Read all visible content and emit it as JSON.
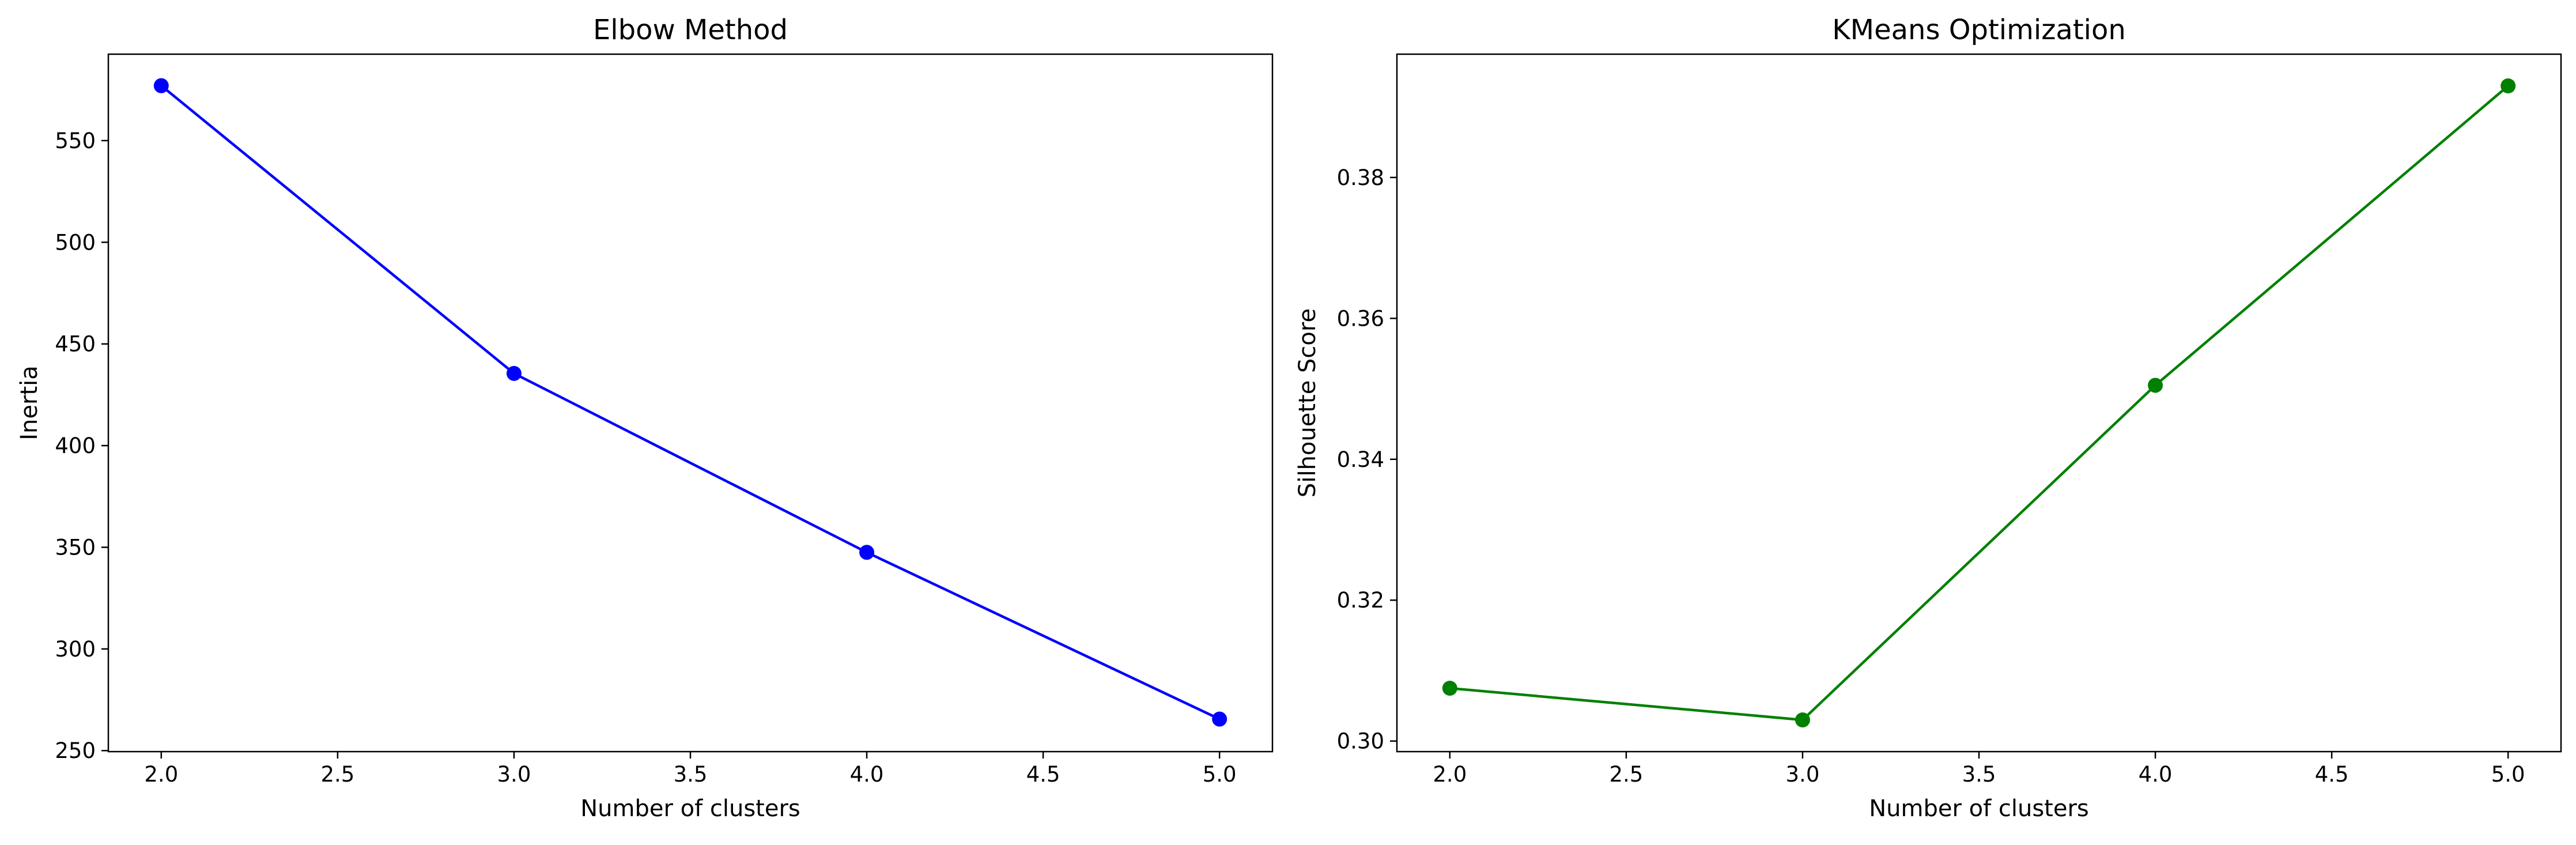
{
  "chart_data": [
    {
      "type": "line",
      "title": "Elbow Method",
      "xlabel": "Number of clusters",
      "ylabel": "Inertia",
      "x": [
        2.0,
        3.0,
        4.0,
        5.0
      ],
      "series": [
        {
          "values": [
            577,
            435.5,
            347.5,
            265.5
          ],
          "color": "#0000ff",
          "marker": "circle"
        }
      ],
      "xlim": [
        1.85,
        5.15
      ],
      "ylim": [
        249.5,
        592.5
      ],
      "xticks": [
        "2.0",
        "2.5",
        "3.0",
        "3.5",
        "4.0",
        "4.5",
        "5.0"
      ],
      "yticks": [
        "250",
        "300",
        "350",
        "400",
        "450",
        "500",
        "550"
      ],
      "grid": false
    },
    {
      "type": "line",
      "title": "KMeans Optimization",
      "xlabel": "Number of clusters",
      "ylabel": "Silhouette Score",
      "x": [
        2.0,
        3.0,
        4.0,
        5.0
      ],
      "series": [
        {
          "values": [
            0.3075,
            0.303,
            0.3505,
            0.393
          ],
          "color": "#008000",
          "marker": "circle"
        }
      ],
      "xlim": [
        1.85,
        5.15
      ],
      "ylim": [
        0.2985,
        0.3975
      ],
      "xticks": [
        "2.0",
        "2.5",
        "3.0",
        "3.5",
        "4.0",
        "4.5",
        "5.0"
      ],
      "yticks": [
        "0.30",
        "0.32",
        "0.34",
        "0.36",
        "0.38"
      ],
      "grid": false
    }
  ]
}
